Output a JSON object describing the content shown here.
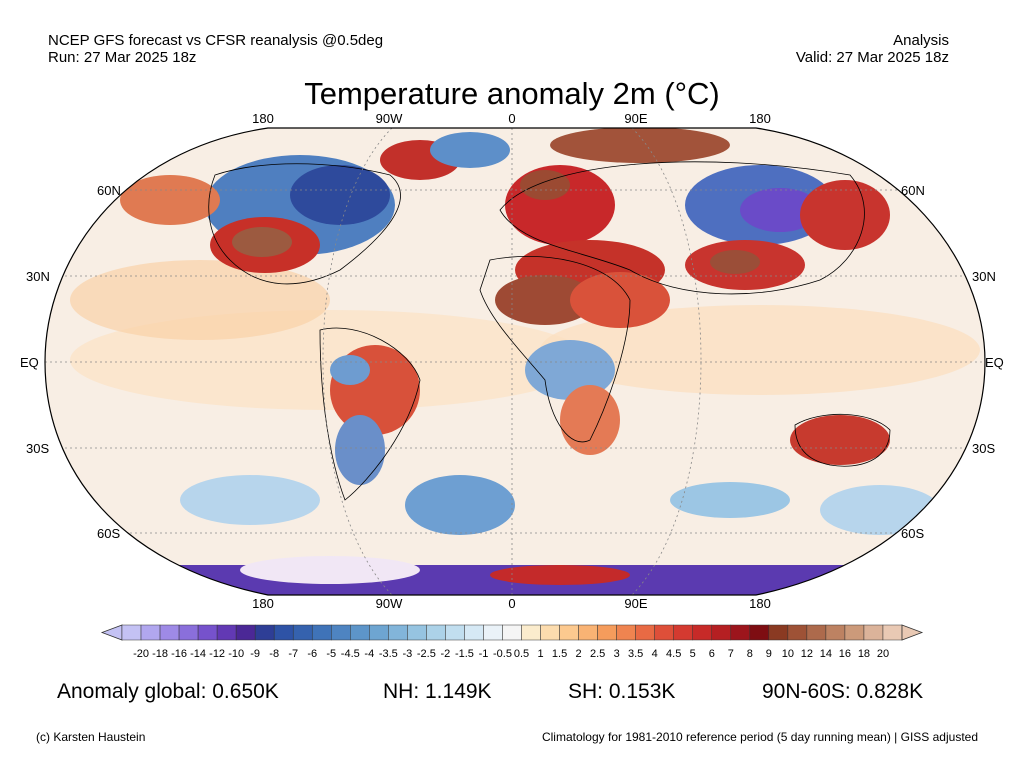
{
  "header": {
    "source_line": "NCEP GFS forecast vs CFSR reanalysis @0.5deg",
    "run_line": "Run: 27 Mar 2025 18z",
    "mode": "Analysis",
    "valid_line": "Valid: 27 Mar 2025 18z"
  },
  "title": "Temperature anomaly 2m (°C)",
  "map": {
    "projection": "Robinson",
    "lon_labels_top": [
      "180",
      "90W",
      "0",
      "90E",
      "180"
    ],
    "lon_labels_bottom": [
      "180",
      "90W",
      "0",
      "90E",
      "180"
    ],
    "lat_labels_left": [
      "60N",
      "30N",
      "EQ",
      "30S",
      "60S"
    ],
    "lat_labels_right": [
      "60N",
      "30N",
      "EQ",
      "30S",
      "60S"
    ]
  },
  "colorbar": {
    "ticks": [
      "-20",
      "-18",
      "-16",
      "-14",
      "-12",
      "-10",
      "-9",
      "-8",
      "-7",
      "-6",
      "-5",
      "-4.5",
      "-4",
      "-3.5",
      "-3",
      "-2.5",
      "-2",
      "-1.5",
      "-1",
      "-0.5",
      "0.5",
      "1",
      "1.5",
      "2",
      "2.5",
      "3",
      "3.5",
      "4",
      "4.5",
      "5",
      "6",
      "7",
      "8",
      "9",
      "10",
      "12",
      "14",
      "16",
      "18",
      "20"
    ],
    "colors": [
      "#c4c2f4",
      "#b1a7ef",
      "#9e8ae6",
      "#8a6fdb",
      "#7652cc",
      "#6239b4",
      "#4b2896",
      "#2e3e96",
      "#2e53a6",
      "#3562ae",
      "#3f73b8",
      "#4e84c1",
      "#5d95c9",
      "#6ea5d1",
      "#82b5da",
      "#96c4e1",
      "#acd2e8",
      "#c1deef",
      "#d6e9f5",
      "#eaf2f8",
      "#f5f5f5",
      "#fbeccd",
      "#fcdcae",
      "#fcc98f",
      "#f9b374",
      "#f59c5c",
      "#ef8450",
      "#e86a44",
      "#de4f39",
      "#d43a30",
      "#c72a28",
      "#b51f22",
      "#9c151c",
      "#7e0d12",
      "#8a3a22",
      "#9e5236",
      "#ad6a4c",
      "#bd8262",
      "#cc9a7a",
      "#dbb39a",
      "#e9c9b4"
    ]
  },
  "stats": {
    "global": "Anomaly global: 0.650K",
    "nh": "NH: 1.149K",
    "sh": "SH: 0.153K",
    "arctic": "90N-60S: 0.828K"
  },
  "footer": {
    "credit": "(c) Karsten Haustein",
    "note": "Climatology for 1981-2010 reference period (5 day running mean) | GISS adjusted"
  }
}
